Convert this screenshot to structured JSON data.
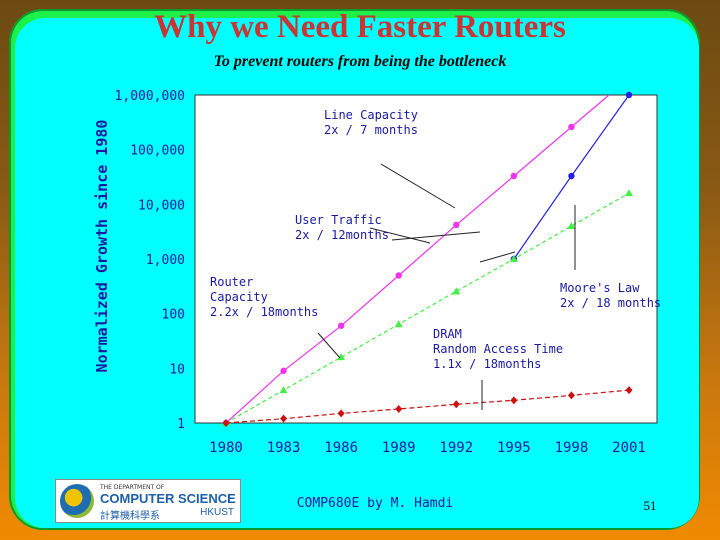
{
  "slide": {
    "title": "Why we Need Faster Routers",
    "subtitle": "To prevent routers from being the bottleneck",
    "footer": "COMP680E by M. Hamdi",
    "page_number": "51",
    "logo": {
      "line1": "THE DEPARTMENT OF",
      "line2": "COMPUTER SCIENCE",
      "line3": "計算機科學系",
      "line4": "HKUST"
    }
  },
  "colors": {
    "background": "#f08a00",
    "frame": "#1cf04a",
    "panel": "#00ffff",
    "title": "#cc3333",
    "line_capacity": "#ee33ee",
    "router_capacity": "#2222dd",
    "user_traffic": "#44ee44",
    "dram": "#cc1111"
  },
  "chart_data": {
    "type": "line",
    "title": "",
    "xlabel": "",
    "ylabel": "Normalized Growth since 1980",
    "y_scale": "log",
    "ylim": [
      1,
      1000000
    ],
    "y_tick_labels": [
      "1",
      "10",
      "100",
      "1,000",
      "10,000",
      "100,000",
      "1,000,000"
    ],
    "y_tick_values": [
      1,
      10,
      100,
      1000,
      10000,
      100000,
      1000000
    ],
    "x": [
      1980,
      1983,
      1986,
      1989,
      1992,
      1995,
      1998,
      2001
    ],
    "x_tick_labels": [
      "1980",
      "1983",
      "1986",
      "1989",
      "1992",
      "1995",
      "1998",
      "2001"
    ],
    "grid": false,
    "series": [
      {
        "key": "line_capacity",
        "color": "#ee33ee",
        "marker": "circle",
        "x": [
          1980,
          1983,
          1986,
          1989,
          1992,
          1995,
          1998
        ],
        "values": [
          1,
          9,
          60,
          500,
          4200,
          33000,
          260000
        ]
      },
      {
        "key": "router_capacity",
        "color": "#2222dd",
        "marker": "circle",
        "x": [
          1995,
          1998,
          2001
        ],
        "values": [
          1000,
          33000,
          1000000
        ]
      },
      {
        "key": "user_traffic",
        "color": "#44ee44",
        "marker": "triangle",
        "x": [
          1980,
          1983,
          1986,
          1989,
          1992,
          1995,
          1998,
          2001
        ],
        "values": [
          1,
          4,
          16,
          64,
          256,
          1000,
          4000,
          16000
        ]
      },
      {
        "key": "dram",
        "color": "#cc1111",
        "marker": "diamond",
        "x": [
          1980,
          1983,
          1986,
          1989,
          1992,
          1995,
          1998,
          2001
        ],
        "values": [
          1,
          1.2,
          1.5,
          1.8,
          2.2,
          2.6,
          3.2,
          4
        ]
      }
    ],
    "annotations": [
      {
        "lines": [
          "Line Capacity",
          "2x / 7 months"
        ]
      },
      {
        "lines": [
          "User Traffic",
          "2x / 12months"
        ]
      },
      {
        "lines": [
          "Router",
          "Capacity",
          "2.2x / 18months"
        ]
      },
      {
        "lines": [
          "Moore's Law",
          "2x / 18 months"
        ]
      },
      {
        "lines": [
          "DRAM",
          "Random Access Time",
          "1.1x / 18months"
        ]
      }
    ]
  }
}
